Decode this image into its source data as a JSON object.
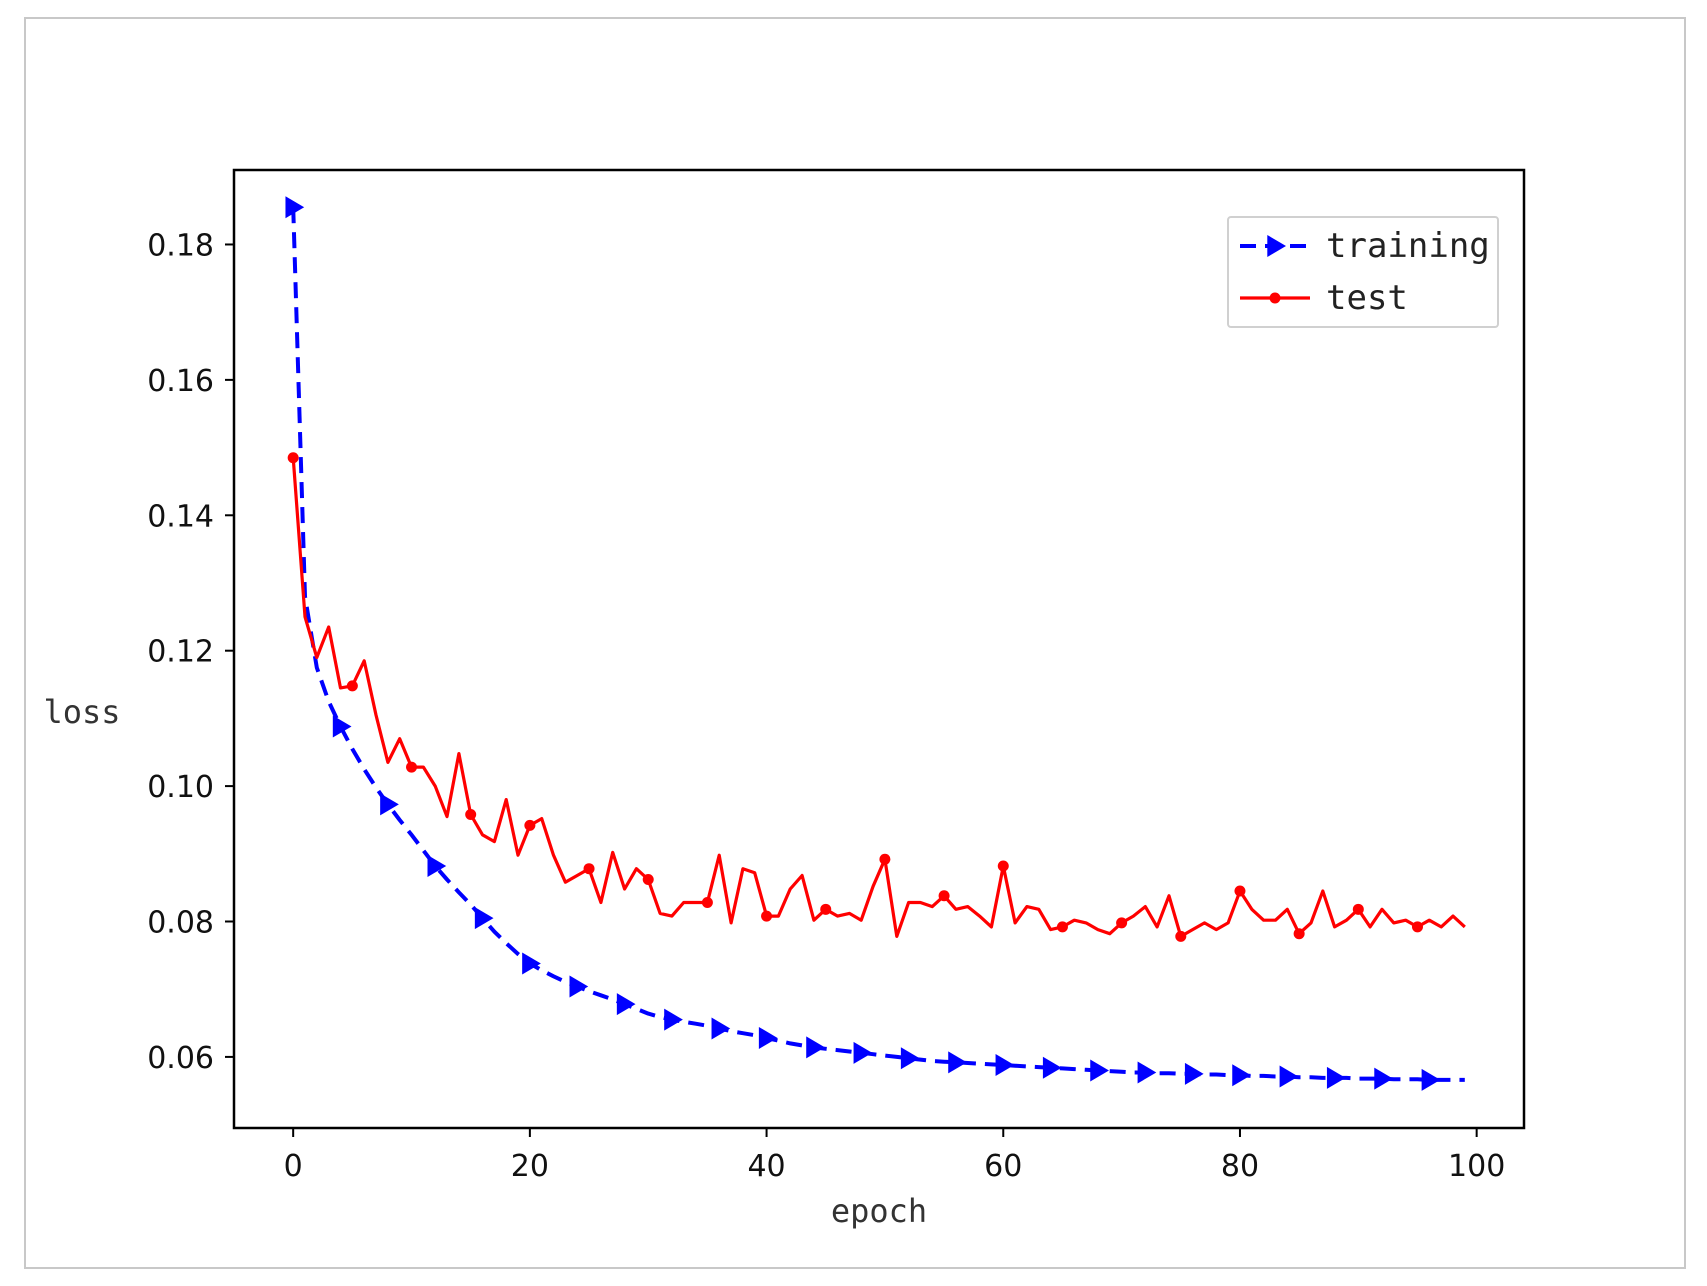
{
  "chart_data": {
    "type": "line",
    "xlabel": "epoch",
    "ylabel": "loss",
    "xlim": [
      -5,
      104
    ],
    "ylim": [
      0.0495,
      0.191
    ],
    "xticks": [
      0,
      20,
      40,
      60,
      80,
      100
    ],
    "xtick_labels": [
      "0",
      "20",
      "40",
      "60",
      "80",
      "100"
    ],
    "yticks": [
      0.06,
      0.08,
      0.1,
      0.12,
      0.14,
      0.16,
      0.18
    ],
    "ytick_labels": [
      "0.06",
      "0.08",
      "0.10",
      "0.12",
      "0.14",
      "0.16",
      "0.18"
    ],
    "grid": false,
    "legend_position": "top-right",
    "series": [
      {
        "name": "training",
        "color": "#0000ff",
        "style": "dashed",
        "marker": "triangle-right",
        "marker_every": 4,
        "x": [
          0,
          1,
          2,
          3,
          4,
          5,
          6,
          7,
          8,
          9,
          10,
          11,
          12,
          13,
          14,
          15,
          16,
          17,
          18,
          19,
          20,
          21,
          22,
          23,
          24,
          25,
          26,
          27,
          28,
          29,
          30,
          31,
          32,
          33,
          34,
          35,
          36,
          37,
          38,
          39,
          40,
          41,
          42,
          43,
          44,
          45,
          46,
          47,
          48,
          49,
          50,
          51,
          52,
          53,
          54,
          55,
          56,
          57,
          58,
          59,
          60,
          61,
          62,
          63,
          64,
          65,
          66,
          67,
          68,
          69,
          70,
          71,
          72,
          73,
          74,
          75,
          76,
          77,
          78,
          79,
          80,
          81,
          82,
          83,
          84,
          85,
          86,
          87,
          88,
          89,
          90,
          91,
          92,
          93,
          94,
          95,
          96,
          97,
          98,
          99
        ],
        "values": [
          0.1855,
          0.128,
          0.1175,
          0.1125,
          0.1088,
          0.1055,
          0.1025,
          0.0998,
          0.0973,
          0.095,
          0.0928,
          0.0905,
          0.0882,
          0.0862,
          0.0843,
          0.0825,
          0.0805,
          0.0785,
          0.0768,
          0.0752,
          0.0738,
          0.0728,
          0.0719,
          0.0711,
          0.0704,
          0.0697,
          0.0691,
          0.0685,
          0.0678,
          0.0671,
          0.0664,
          0.0659,
          0.0655,
          0.0652,
          0.0649,
          0.0646,
          0.0642,
          0.0638,
          0.0635,
          0.0632,
          0.0628,
          0.0624,
          0.062,
          0.0617,
          0.0614,
          0.0612,
          0.061,
          0.0608,
          0.0606,
          0.0604,
          0.0602,
          0.06,
          0.0598,
          0.0596,
          0.0594,
          0.0593,
          0.0592,
          0.0591,
          0.059,
          0.0589,
          0.0588,
          0.0587,
          0.0586,
          0.0585,
          0.0584,
          0.0583,
          0.0582,
          0.0581,
          0.058,
          0.0579,
          0.0578,
          0.0577,
          0.0577,
          0.0576,
          0.0576,
          0.0575,
          0.0575,
          0.0574,
          0.0574,
          0.0573,
          0.0573,
          0.0572,
          0.0572,
          0.0571,
          0.0571,
          0.057,
          0.057,
          0.0569,
          0.0569,
          0.0569,
          0.0568,
          0.0568,
          0.0568,
          0.0567,
          0.0567,
          0.0567,
          0.0566,
          0.0566,
          0.0566,
          0.0566
        ]
      },
      {
        "name": "test",
        "color": "#ff0000",
        "style": "solid",
        "marker": "circle",
        "marker_every": 5,
        "x": [
          0,
          1,
          2,
          3,
          4,
          5,
          6,
          7,
          8,
          9,
          10,
          11,
          12,
          13,
          14,
          15,
          16,
          17,
          18,
          19,
          20,
          21,
          22,
          23,
          24,
          25,
          26,
          27,
          28,
          29,
          30,
          31,
          32,
          33,
          34,
          35,
          36,
          37,
          38,
          39,
          40,
          41,
          42,
          43,
          44,
          45,
          46,
          47,
          48,
          49,
          50,
          51,
          52,
          53,
          54,
          55,
          56,
          57,
          58,
          59,
          60,
          61,
          62,
          63,
          64,
          65,
          66,
          67,
          68,
          69,
          70,
          71,
          72,
          73,
          74,
          75,
          76,
          77,
          78,
          79,
          80,
          81,
          82,
          83,
          84,
          85,
          86,
          87,
          88,
          89,
          90,
          91,
          92,
          93,
          94,
          95,
          96,
          97,
          98,
          99
        ],
        "values": [
          0.1485,
          0.125,
          0.119,
          0.1235,
          0.1145,
          0.1148,
          0.1185,
          0.1105,
          0.1035,
          0.107,
          0.1028,
          0.1028,
          0.1,
          0.0955,
          0.1048,
          0.0958,
          0.0928,
          0.0918,
          0.098,
          0.0898,
          0.0942,
          0.0952,
          0.0898,
          0.0858,
          0.0868,
          0.0878,
          0.0828,
          0.0902,
          0.0848,
          0.0878,
          0.0862,
          0.0812,
          0.0808,
          0.0828,
          0.0828,
          0.0828,
          0.0898,
          0.0798,
          0.0878,
          0.0872,
          0.0808,
          0.0808,
          0.0848,
          0.0868,
          0.0802,
          0.0818,
          0.0808,
          0.0812,
          0.0802,
          0.0852,
          0.0892,
          0.0778,
          0.0828,
          0.0828,
          0.0822,
          0.0838,
          0.0818,
          0.0822,
          0.0808,
          0.0792,
          0.0882,
          0.0798,
          0.0822,
          0.0818,
          0.0788,
          0.0792,
          0.0802,
          0.0798,
          0.0788,
          0.0782,
          0.0798,
          0.0808,
          0.0822,
          0.0792,
          0.0838,
          0.0778,
          0.0788,
          0.0798,
          0.0788,
          0.0798,
          0.0845,
          0.0818,
          0.0802,
          0.0802,
          0.0818,
          0.0782,
          0.0798,
          0.0845,
          0.0792,
          0.0802,
          0.0818,
          0.0792,
          0.0818,
          0.0798,
          0.0802,
          0.0792,
          0.0802,
          0.0792,
          0.0808,
          0.0792
        ]
      }
    ]
  }
}
